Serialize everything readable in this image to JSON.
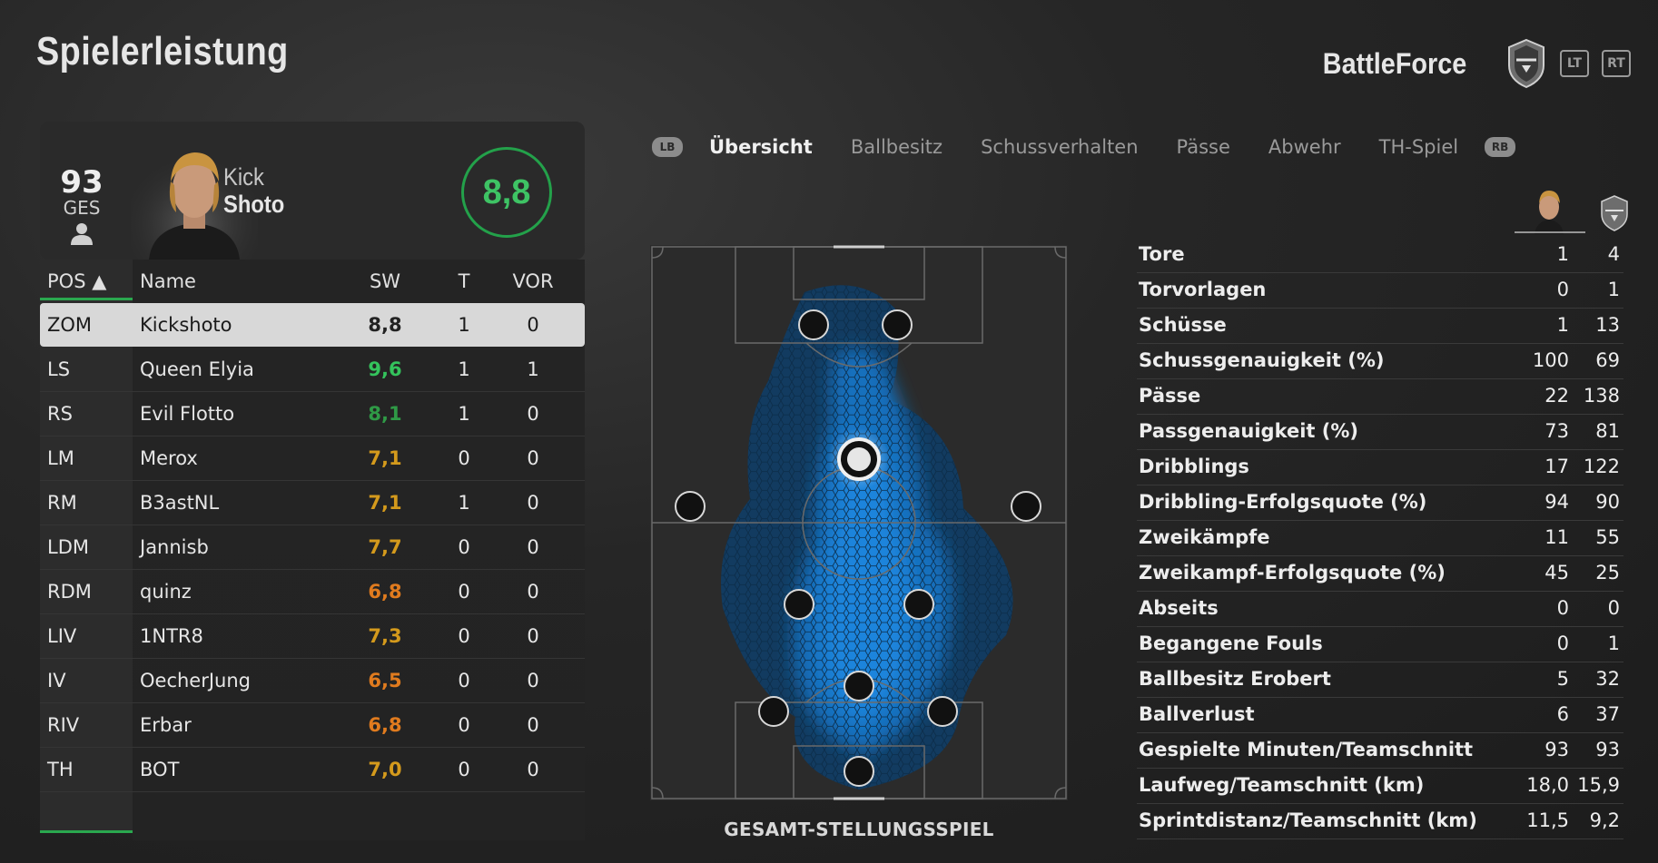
{
  "page": {
    "title": "Spielerleistung"
  },
  "club": {
    "name": "BattleForce",
    "lt": "LT",
    "rt": "RT"
  },
  "player_card": {
    "overall": "93",
    "overall_label": "GES",
    "first_name": "Kick",
    "last_name": "Shoto",
    "match_rating": "8,8"
  },
  "table": {
    "headers": {
      "pos": "POS ▲",
      "name": "Name",
      "sw": "SW",
      "t": "T",
      "vor": "VOR"
    },
    "rows": [
      {
        "pos": "ZOM",
        "name": "Kickshoto",
        "sw": "8,8",
        "t": "1",
        "vor": "0",
        "sw_color": "#222222"
      },
      {
        "pos": "LS",
        "name": "Queen Elyia",
        "sw": "9,6",
        "t": "1",
        "vor": "1",
        "sw_color": "#34c35c"
      },
      {
        "pos": "RS",
        "name": "Evil Flotto",
        "sw": "8,1",
        "t": "1",
        "vor": "0",
        "sw_color": "#2f9a46"
      },
      {
        "pos": "LM",
        "name": "Merox",
        "sw": "7,1",
        "t": "0",
        "vor": "0",
        "sw_color": "#d49a1c"
      },
      {
        "pos": "RM",
        "name": "B3astNL",
        "sw": "7,1",
        "t": "1",
        "vor": "0",
        "sw_color": "#d49a1c"
      },
      {
        "pos": "LDM",
        "name": "Jannisb",
        "sw": "7,7",
        "t": "0",
        "vor": "0",
        "sw_color": "#d49a1c"
      },
      {
        "pos": "RDM",
        "name": "quinz",
        "sw": "6,8",
        "t": "0",
        "vor": "0",
        "sw_color": "#e07b1e"
      },
      {
        "pos": "LIV",
        "name": "1NTR8",
        "sw": "7,3",
        "t": "0",
        "vor": "0",
        "sw_color": "#d49a1c"
      },
      {
        "pos": "IV",
        "name": "OecherJung",
        "sw": "6,5",
        "t": "0",
        "vor": "0",
        "sw_color": "#e07b1e"
      },
      {
        "pos": "RIV",
        "name": "Erbar",
        "sw": "6,8",
        "t": "0",
        "vor": "0",
        "sw_color": "#e07b1e"
      },
      {
        "pos": "TH",
        "name": "BOT",
        "sw": "7,0",
        "t": "0",
        "vor": "0",
        "sw_color": "#d49a1c"
      }
    ]
  },
  "tabs": {
    "lb": "LB",
    "rb": "RB",
    "items": [
      "Übersicht",
      "Ballbesitz",
      "Schussverhalten",
      "Pässe",
      "Abwehr",
      "TH-Spiel"
    ],
    "active": "Übersicht"
  },
  "pitch": {
    "label": "GESAMT-STELLUNGSSPIEL"
  },
  "stats": [
    {
      "label": "Tore",
      "player": "1",
      "team": "4"
    },
    {
      "label": "Torvorlagen",
      "player": "0",
      "team": "1"
    },
    {
      "label": "Schüsse",
      "player": "1",
      "team": "13"
    },
    {
      "label": "Schussgenauigkeit (%)",
      "player": "100",
      "team": "69"
    },
    {
      "label": "Pässe",
      "player": "22",
      "team": "138"
    },
    {
      "label": "Passgenauigkeit (%)",
      "player": "73",
      "team": "81"
    },
    {
      "label": "Dribblings",
      "player": "17",
      "team": "122"
    },
    {
      "label": "Dribbling-Erfolgsquote (%)",
      "player": "94",
      "team": "90"
    },
    {
      "label": "Zweikämpfe",
      "player": "11",
      "team": "55"
    },
    {
      "label": "Zweikampf-Erfolgsquote (%)",
      "player": "45",
      "team": "25"
    },
    {
      "label": "Abseits",
      "player": "0",
      "team": "0"
    },
    {
      "label": "Begangene Fouls",
      "player": "0",
      "team": "1"
    },
    {
      "label": "Ballbesitz Erobert",
      "player": "5",
      "team": "32"
    },
    {
      "label": "Ballverlust",
      "player": "6",
      "team": "37"
    },
    {
      "label": "Gespielte Minuten/Teamschnitt",
      "player": "93",
      "team": "93"
    },
    {
      "label": "Laufweg/Teamschnitt (km)",
      "player": "18,0",
      "team": "15,9"
    },
    {
      "label": "Sprintdistanz/Teamschnitt (km)",
      "player": "11,5",
      "team": "9,2"
    }
  ],
  "colors": {
    "accent": "#2aa84f",
    "heatmap": "#1a7fd4",
    "rating_ring": "#23a14a"
  }
}
